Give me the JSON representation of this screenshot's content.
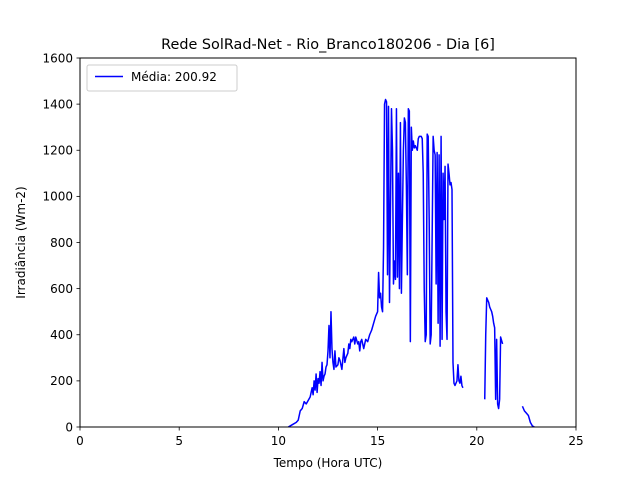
{
  "chart_data": {
    "type": "line",
    "title": "Rede SolRad-Net - Rio_Branco180206 - Dia [6]",
    "xlabel": "Tempo (Hora UTC)",
    "ylabel": "Irradiância (Wm-2)",
    "xlim": [
      0,
      25
    ],
    "ylim": [
      0,
      1600
    ],
    "xticks": [
      0,
      5,
      10,
      15,
      20,
      25
    ],
    "yticks": [
      0,
      200,
      400,
      600,
      800,
      1000,
      1200,
      1400,
      1600
    ],
    "grid": false,
    "legend_position": "upper left",
    "series": [
      {
        "name": "Média: 200.92",
        "color": "#0000ff",
        "segments": [
          [
            [
              10.5,
              0
            ],
            [
              10.7,
              10
            ],
            [
              10.9,
              20
            ],
            [
              11.0,
              30
            ],
            [
              11.1,
              70
            ],
            [
              11.2,
              80
            ],
            [
              11.3,
              110
            ],
            [
              11.4,
              100
            ],
            [
              11.5,
              115
            ],
            [
              11.6,
              130
            ],
            [
              11.7,
              170
            ],
            [
              11.75,
              140
            ],
            [
              11.8,
              200
            ],
            [
              11.85,
              160
            ],
            [
              11.9,
              230
            ],
            [
              11.95,
              150
            ],
            [
              12.0,
              210
            ],
            [
              12.05,
              190
            ],
            [
              12.1,
              240
            ],
            [
              12.15,
              180
            ],
            [
              12.2,
              280
            ],
            [
              12.25,
              200
            ],
            [
              12.3,
              220
            ],
            [
              12.35,
              230
            ],
            [
              12.4,
              260
            ],
            [
              12.45,
              270
            ],
            [
              12.5,
              330
            ],
            [
              12.55,
              440
            ],
            [
              12.6,
              300
            ],
            [
              12.65,
              500
            ],
            [
              12.7,
              340
            ],
            [
              12.75,
              280
            ],
            [
              12.8,
              250
            ],
            [
              12.85,
              330
            ],
            [
              12.9,
              260
            ],
            [
              13.0,
              270
            ],
            [
              13.05,
              300
            ],
            [
              13.1,
              290
            ],
            [
              13.2,
              250
            ],
            [
              13.3,
              340
            ],
            [
              13.35,
              280
            ],
            [
              13.4,
              300
            ],
            [
              13.5,
              320
            ],
            [
              13.55,
              360
            ],
            [
              13.6,
              340
            ],
            [
              13.65,
              380
            ],
            [
              13.7,
              370
            ],
            [
              13.8,
              390
            ],
            [
              13.85,
              360
            ],
            [
              13.9,
              390
            ],
            [
              14.0,
              360
            ],
            [
              14.05,
              370
            ],
            [
              14.1,
              330
            ],
            [
              14.15,
              370
            ],
            [
              14.2,
              380
            ],
            [
              14.3,
              340
            ],
            [
              14.4,
              380
            ],
            [
              14.5,
              370
            ],
            [
              14.6,
              400
            ],
            [
              14.7,
              420
            ],
            [
              14.8,
              450
            ],
            [
              14.9,
              480
            ],
            [
              15.0,
              500
            ],
            [
              15.05,
              670
            ],
            [
              15.1,
              560
            ],
            [
              15.15,
              580
            ],
            [
              15.2,
              520
            ],
            [
              15.25,
              500
            ],
            [
              15.3,
              780
            ],
            [
              15.35,
              1400
            ],
            [
              15.4,
              1420
            ],
            [
              15.45,
              1410
            ],
            [
              15.5,
              660
            ],
            [
              15.55,
              1390
            ],
            [
              15.6,
              540
            ],
            [
              15.7,
              1380
            ],
            [
              15.75,
              1200
            ],
            [
              15.8,
              620
            ],
            [
              15.85,
              720
            ],
            [
              15.9,
              640
            ],
            [
              15.95,
              1380
            ],
            [
              16.0,
              650
            ],
            [
              16.05,
              1100
            ],
            [
              16.1,
              600
            ],
            [
              16.15,
              1320
            ],
            [
              16.2,
              580
            ],
            [
              16.25,
              900
            ],
            [
              16.3,
              1200
            ],
            [
              16.35,
              1340
            ],
            [
              16.4,
              1320
            ],
            [
              16.45,
              1050
            ],
            [
              16.5,
              660
            ],
            [
              16.55,
              1380
            ],
            [
              16.6,
              1370
            ],
            [
              16.65,
              370
            ],
            [
              16.7,
              1300
            ],
            [
              16.75,
              1200
            ],
            [
              16.8,
              1240
            ],
            [
              16.85,
              1210
            ],
            [
              16.9,
              1220
            ],
            [
              17.0,
              1200
            ],
            [
              17.05,
              1250
            ],
            [
              17.1,
              1260
            ],
            [
              17.2,
              1260
            ],
            [
              17.25,
              1250
            ],
            [
              17.3,
              1100
            ],
            [
              17.35,
              600
            ],
            [
              17.4,
              370
            ],
            [
              17.45,
              400
            ],
            [
              17.5,
              1270
            ],
            [
              17.55,
              1260
            ],
            [
              17.6,
              900
            ],
            [
              17.65,
              360
            ],
            [
              17.7,
              400
            ],
            [
              17.8,
              1260
            ],
            [
              17.85,
              1200
            ],
            [
              17.9,
              1180
            ],
            [
              17.95,
              620
            ],
            [
              18.0,
              1190
            ],
            [
              18.05,
              450
            ],
            [
              18.1,
              1180
            ],
            [
              18.15,
              350
            ],
            [
              18.2,
              1260
            ],
            [
              18.25,
              380
            ],
            [
              18.3,
              1100
            ],
            [
              18.35,
              900
            ],
            [
              18.4,
              1130
            ],
            [
              18.45,
              500
            ],
            [
              18.5,
              380
            ],
            [
              18.55,
              1140
            ],
            [
              18.6,
              1100
            ],
            [
              18.65,
              1050
            ],
            [
              18.7,
              1060
            ],
            [
              18.75,
              1030
            ],
            [
              18.8,
              280
            ],
            [
              18.85,
              190
            ],
            [
              18.9,
              180
            ],
            [
              19.0,
              200
            ],
            [
              19.05,
              270
            ],
            [
              19.1,
              200
            ],
            [
              19.15,
              190
            ],
            [
              19.2,
              220
            ],
            [
              19.25,
              180
            ],
            [
              19.3,
              170
            ]
          ],
          [
            [
              20.4,
              120
            ],
            [
              20.45,
              400
            ],
            [
              20.5,
              560
            ],
            [
              20.55,
              550
            ],
            [
              20.6,
              540
            ],
            [
              20.65,
              520
            ],
            [
              20.7,
              510
            ],
            [
              20.75,
              500
            ],
            [
              20.8,
              480
            ],
            [
              20.85,
              450
            ],
            [
              20.9,
              430
            ],
            [
              20.95,
              120
            ],
            [
              21.0,
              380
            ],
            [
              21.05,
              100
            ],
            [
              21.1,
              80
            ],
            [
              21.15,
              120
            ],
            [
              21.2,
              390
            ],
            [
              21.3,
              360
            ]
          ],
          [
            [
              22.3,
              90
            ],
            [
              22.4,
              70
            ],
            [
              22.5,
              60
            ],
            [
              22.6,
              50
            ],
            [
              22.7,
              20
            ],
            [
              22.8,
              5
            ],
            [
              22.9,
              0
            ]
          ]
        ]
      }
    ]
  }
}
